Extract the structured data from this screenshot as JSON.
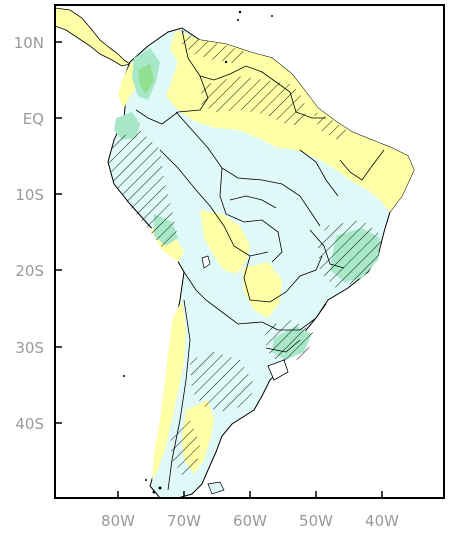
{
  "map": {
    "lat_labels": [
      "10N",
      "EQ",
      "10S",
      "20S",
      "30S",
      "40S"
    ],
    "lon_labels": [
      "80W",
      "70W",
      "60W",
      "50W",
      "40W"
    ],
    "colors": {
      "yellow": "#ffffa8",
      "light_cyan": "#dff8f8",
      "teal": "#a8e8c8",
      "green": "#90e090",
      "ocean": "#ffffff",
      "border": "#000000",
      "hatch": "#000000",
      "tick_label": "#9a9a9a"
    }
  }
}
